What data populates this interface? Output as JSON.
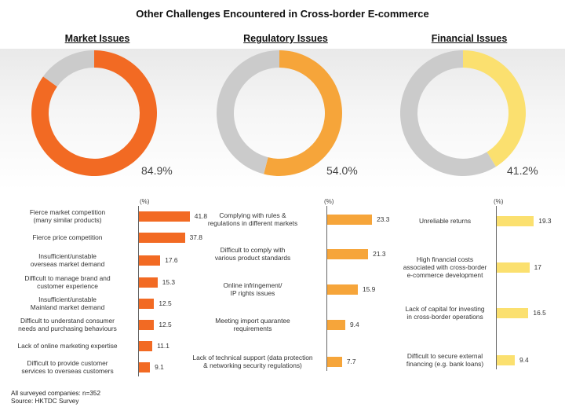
{
  "title": "Other Challenges Encountered in Cross-border E-commerce",
  "footnote": "All surveyed companies: n=352",
  "source": "Source: HKTDC Survey",
  "unit_label": "(%)",
  "colors": {
    "remainder": "#cbcbcb",
    "market": "#f26a23",
    "regulatory": "#f6a53a",
    "financial": "#fbe06f"
  },
  "chart_data": [
    {
      "type": "pie",
      "title": "Market Issues",
      "values": [
        84.9,
        15.1
      ],
      "value_label": "84.9%"
    },
    {
      "type": "pie",
      "title": "Regulatory Issues",
      "values": [
        54.0,
        46.0
      ],
      "value_label": "54.0%"
    },
    {
      "type": "pie",
      "title": "Financial Issues",
      "values": [
        41.2,
        58.8
      ],
      "value_label": "41.2%"
    },
    {
      "type": "bar",
      "orientation": "horizontal",
      "ylabel": "(%)",
      "categories": [
        "Fierce market competition\n(many similar products)",
        "Fierce price competition",
        "Insufficient/unstable\noverseas market demand",
        "Difficult to manage brand and\ncustomer experience",
        "Insufficient/unstable\nMainland market demand",
        "Difficult to understand consumer\nneeds and purchasing behaviours",
        "Lack of online marketing expertise",
        "Difficult to provide customer\nservices to overseas customers"
      ],
      "values": [
        41.8,
        37.8,
        17.6,
        15.3,
        12.5,
        12.5,
        11.1,
        9.1
      ],
      "labels": [
        "41.8",
        "37.8",
        "17.6",
        "15.3",
        "12.5",
        "12.5",
        "11.1",
        "9.1"
      ]
    },
    {
      "type": "bar",
      "orientation": "horizontal",
      "ylabel": "(%)",
      "categories": [
        "Complying with rules &\nregulations in different markets",
        "Difficult to comply with\nvarious product standards",
        "Online infringement/\nIP rights issues",
        "Meeting import quarantee\nrequirements",
        "Lack of technical support (data protection\n& networking security regulations)"
      ],
      "values": [
        23.3,
        21.3,
        15.9,
        9.4,
        7.7
      ],
      "labels": [
        "23.3",
        "21.3",
        "15.9",
        "9.4",
        "7.7"
      ]
    },
    {
      "type": "bar",
      "orientation": "horizontal",
      "ylabel": "(%)",
      "categories": [
        "Unreliable returns",
        "High financial costs\nassociated with cross-border\ne-commerce development",
        "Lack of capital for investing\nin cross-border operations",
        "Difficult to secure external\nfinancing (e.g. bank loans)"
      ],
      "values": [
        19.3,
        17,
        16.5,
        9.4
      ],
      "labels": [
        "19.3",
        "17",
        "16.5",
        "9.4"
      ]
    }
  ]
}
